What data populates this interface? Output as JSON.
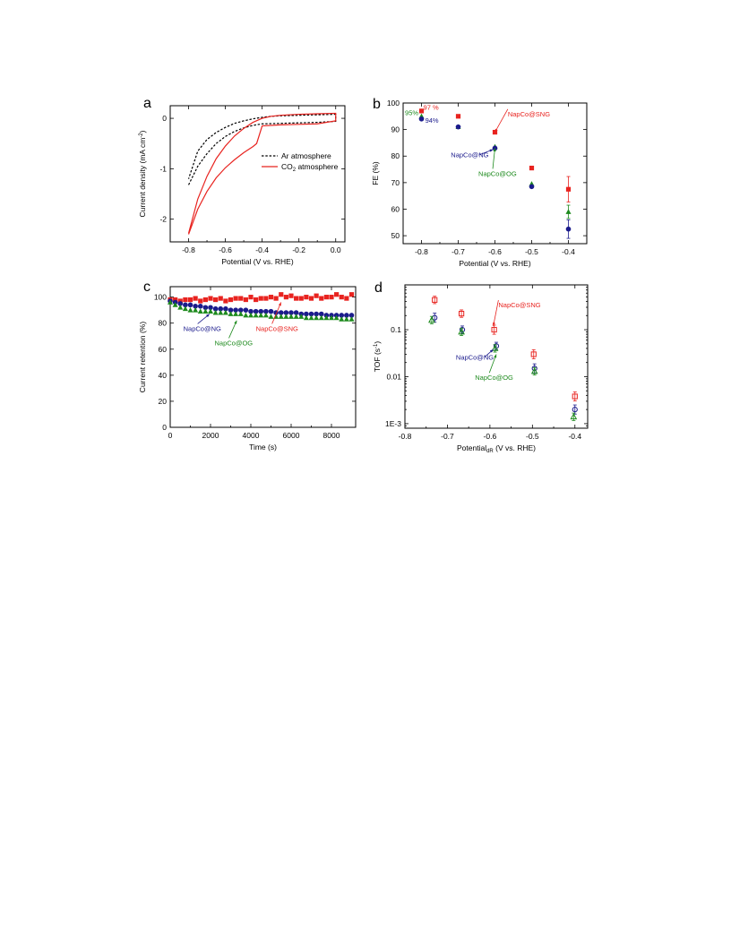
{
  "colors": {
    "red": "#e8231f",
    "green": "#1d8a1d",
    "navy": "#1b1b8c",
    "black": "#000000"
  },
  "chart_data": [
    {
      "panel": "a",
      "type": "line",
      "xlabel": "Potential (V vs. RHE)",
      "ylabel": "Current density (mA cm",
      "ylabel_sup": "-2",
      "ylabel_end": ")",
      "xlim": [
        -0.9,
        0.05
      ],
      "ylim": [
        -2.45,
        0.25
      ],
      "xticks": [
        -0.8,
        -0.6,
        -0.4,
        -0.2,
        0.0
      ],
      "xtick_labels": [
        "-0.8",
        "-0.6",
        "-0.4",
        "-0.2",
        "0.0"
      ],
      "yticks": [
        0,
        -1,
        -2
      ],
      "ytick_labels": [
        "0",
        "-1",
        "-2"
      ],
      "legend": {
        "placement": "right-middle",
        "entries": [
          {
            "label": "Ar atmosphere",
            "style": "dashed",
            "color": "#000000"
          },
          {
            "label": "CO",
            "sub": "2",
            "rest": " atmosphere",
            "style": "solid",
            "color": "#e8231f"
          }
        ]
      },
      "series": [
        {
          "name": "Ar atmosphere",
          "color": "#000000",
          "style": "dashed",
          "loops": [
            {
              "x": [
                -0.8,
                -0.75,
                -0.7,
                -0.65,
                -0.6,
                -0.55,
                -0.5,
                -0.45,
                -0.4,
                -0.3,
                -0.2,
                -0.1,
                0.0,
                0.0,
                -0.1,
                -0.2,
                -0.3,
                -0.35,
                -0.4,
                -0.45,
                -0.5,
                -0.55,
                -0.6,
                -0.65,
                -0.7,
                -0.75,
                -0.8
              ],
              "y": [
                -1.32,
                -0.95,
                -0.7,
                -0.5,
                -0.36,
                -0.26,
                -0.19,
                -0.14,
                -0.11,
                -0.1,
                -0.09,
                -0.08,
                -0.06,
                0.08,
                0.07,
                0.06,
                0.05,
                0.04,
                0.02,
                -0.01,
                -0.05,
                -0.1,
                -0.18,
                -0.28,
                -0.42,
                -0.65,
                -1.2
              ]
            }
          ]
        },
        {
          "name": "CO2 atmosphere",
          "color": "#e8231f",
          "style": "solid",
          "loops": [
            {
              "x": [
                -0.8,
                -0.75,
                -0.7,
                -0.65,
                -0.6,
                -0.55,
                -0.5,
                -0.45,
                -0.43,
                -0.4,
                -0.3,
                -0.2,
                -0.1,
                0.0,
                0.0,
                -0.1,
                -0.2,
                -0.3,
                -0.35,
                -0.4,
                -0.45,
                -0.5,
                -0.55,
                -0.6,
                -0.65,
                -0.7,
                -0.75,
                -0.8
              ],
              "y": [
                -2.3,
                -1.8,
                -1.45,
                -1.18,
                -0.98,
                -0.82,
                -0.68,
                -0.56,
                -0.5,
                -0.15,
                -0.13,
                -0.12,
                -0.11,
                -0.05,
                0.1,
                0.09,
                0.08,
                0.06,
                0.04,
                0.0,
                -0.08,
                -0.2,
                -0.35,
                -0.55,
                -0.8,
                -1.15,
                -1.6,
                -2.28
              ]
            }
          ]
        }
      ]
    },
    {
      "panel": "b",
      "type": "scatter",
      "xlabel": "Potential (V vs. RHE)",
      "ylabel": "FE (%)",
      "xlim": [
        -0.85,
        -0.35
      ],
      "ylim": [
        47,
        100
      ],
      "xticks": [
        -0.8,
        -0.7,
        -0.6,
        -0.5,
        -0.4
      ],
      "xtick_labels": [
        "-0.8",
        "-0.7",
        "-0.6",
        "-0.5",
        "-0.4"
      ],
      "yticks": [
        50,
        60,
        70,
        80,
        90,
        100
      ],
      "ytick_labels": [
        "50",
        "60",
        "70",
        "80",
        "90",
        "100"
      ],
      "series": [
        {
          "name": "NapCo@SNG",
          "color": "#e8231f",
          "marker": "square",
          "x": [
            -0.8,
            -0.7,
            -0.6,
            -0.5,
            -0.4
          ],
          "y": [
            97,
            95,
            89,
            75.5,
            67.5
          ],
          "err": [
            0.6,
            0.6,
            0.6,
            0.8,
            4.8
          ]
        },
        {
          "name": "NapCo@OG",
          "color": "#1d8a1d",
          "marker": "triangle",
          "x": [
            -0.8,
            -0.7,
            -0.6,
            -0.5,
            -0.4
          ],
          "y": [
            95,
            91,
            83.5,
            69.5,
            59
          ],
          "err": [
            0.6,
            0.6,
            0.6,
            1.0,
            2.5
          ]
        },
        {
          "name": "NapCo@NG",
          "color": "#1b1b8c",
          "marker": "circle",
          "x": [
            -0.8,
            -0.7,
            -0.6,
            -0.5,
            -0.4
          ],
          "y": [
            94,
            91,
            83,
            68.5,
            52.5
          ],
          "err": [
            0.6,
            0.6,
            0.6,
            1.0,
            3.5
          ]
        }
      ],
      "annotations": [
        {
          "text": "97 %",
          "color": "#e8231f",
          "x": -0.795,
          "y": 97.4
        },
        {
          "text": "95%",
          "color": "#1d8a1d",
          "x": -0.845,
          "y": 95.5
        },
        {
          "text": "94%",
          "color": "#1b1b8c",
          "x": -0.79,
          "y": 92.5
        },
        {
          "text": "NapCo@SNG",
          "color": "#e8231f",
          "x": -0.565,
          "y": 95,
          "arrow_to": [
            -0.6,
            89
          ]
        },
        {
          "text": "NapCo@NG",
          "color": "#1b1b8c",
          "x": -0.72,
          "y": 79.5,
          "arrow_to": [
            -0.605,
            82.5
          ]
        },
        {
          "text": "NapCo@OG",
          "color": "#1d8a1d",
          "x": -0.645,
          "y": 72.5,
          "arrow_to": [
            -0.6,
            83
          ]
        }
      ]
    },
    {
      "panel": "c",
      "type": "scatter",
      "xlabel": "Time (s)",
      "ylabel": "Current retention (%)",
      "xlim": [
        0,
        9200
      ],
      "ylim": [
        0,
        108
      ],
      "xticks": [
        0,
        2000,
        4000,
        6000,
        8000
      ],
      "xtick_labels": [
        "0",
        "2000",
        "4000",
        "6000",
        "8000"
      ],
      "yticks": [
        0,
        20,
        40,
        60,
        80,
        100
      ],
      "ytick_labels": [
        "0",
        "20",
        "40",
        "60",
        "80",
        "100"
      ],
      "series": [
        {
          "name": "NapCo@SNG",
          "color": "#e8231f",
          "marker": "square",
          "x_step": 250,
          "y": [
            98,
            98,
            97,
            98,
            98,
            99,
            97,
            98,
            99,
            98,
            99,
            97,
            98,
            99,
            99,
            98,
            100,
            98,
            99,
            99,
            100,
            99,
            102,
            100,
            101,
            99,
            99,
            100,
            99,
            101,
            99,
            100,
            100,
            102,
            100,
            99,
            102
          ]
        },
        {
          "name": "NapCo@NG",
          "color": "#1b1b8c",
          "marker": "circle",
          "x_step": 250,
          "y": [
            97,
            96,
            95,
            94,
            94,
            93,
            93,
            92,
            92,
            91,
            91,
            91,
            90,
            90,
            90,
            90,
            89,
            89,
            89,
            89,
            89,
            88,
            88,
            88,
            88,
            88,
            87,
            87,
            87,
            87,
            87,
            86,
            86,
            86,
            86,
            86,
            86
          ]
        },
        {
          "name": "NapCo@OG",
          "color": "#1d8a1d",
          "marker": "triangle",
          "x_step": 250,
          "y": [
            96,
            94,
            92,
            91,
            90,
            90,
            89,
            89,
            89,
            88,
            88,
            88,
            87,
            87,
            87,
            86,
            86,
            86,
            86,
            86,
            85,
            85,
            85,
            85,
            85,
            85,
            85,
            84,
            84,
            84,
            84,
            84,
            84,
            84,
            83,
            83,
            83
          ]
        }
      ],
      "annotations": [
        {
          "text": "NapCo@NG",
          "color": "#1b1b8c",
          "x": 650,
          "y": 74,
          "arrow_to": [
            1950,
            87
          ]
        },
        {
          "text": "NapCo@OG",
          "color": "#1d8a1d",
          "x": 2200,
          "y": 63,
          "arrow_to": [
            3300,
            82
          ]
        },
        {
          "text": "NapCo@SNG",
          "color": "#e8231f",
          "x": 4250,
          "y": 74,
          "arrow_to": [
            5500,
            96
          ]
        }
      ]
    },
    {
      "panel": "d",
      "type": "scatter",
      "xlabel": "Potential",
      "xlabel_sub": "dR",
      "xlabel_end": " (V vs. RHE)",
      "ylabel": "TOF (s",
      "ylabel_sup": "-1",
      "ylabel_end": ")",
      "y_scale": "log",
      "xlim": [
        -0.8,
        -0.37
      ],
      "ylim": [
        0.0008,
        0.9
      ],
      "xticks": [
        -0.8,
        -0.7,
        -0.6,
        -0.5,
        -0.4
      ],
      "xtick_labels": [
        "-0.8",
        "-0.7",
        "-0.6",
        "-0.5",
        "-0.4"
      ],
      "yticks": [
        0.001,
        0.01,
        0.1
      ],
      "ytick_labels": [
        "1E-3",
        "0.01",
        "0.1"
      ],
      "series": [
        {
          "name": "NapCo@SNG",
          "color": "#e8231f",
          "marker": "square-open",
          "x": [
            -0.73,
            -0.667,
            -0.59,
            -0.497,
            -0.4
          ],
          "y": [
            0.43,
            0.22,
            0.1,
            0.03,
            0.0038
          ],
          "errf": [
            1.2,
            1.2,
            1.25,
            1.25,
            1.25
          ]
        },
        {
          "name": "NapCo@NG",
          "color": "#1b1b8c",
          "marker": "circle-open",
          "x": [
            -0.73,
            -0.665,
            -0.585,
            -0.495,
            -0.4
          ],
          "y": [
            0.18,
            0.1,
            0.045,
            0.015,
            0.002
          ],
          "errf": [
            1.25,
            1.2,
            1.2,
            1.25,
            1.25
          ]
        },
        {
          "name": "NapCo@OG",
          "color": "#1d8a1d",
          "marker": "triangle-open",
          "x": [
            -0.737,
            -0.667,
            -0.588,
            -0.495,
            -0.403
          ],
          "y": [
            0.16,
            0.09,
            0.04,
            0.013,
            0.0014
          ],
          "errf": [
            1.2,
            1.2,
            1.2,
            1.2,
            1.2
          ]
        }
      ],
      "annotations": [
        {
          "text": "NapCo@SNG",
          "color": "#e8231f",
          "x": -0.58,
          "y": 0.3,
          "arrow_to": [
            -0.592,
            0.12
          ]
        },
        {
          "text": "NapCo@NG",
          "color": "#1b1b8c",
          "x": -0.68,
          "y": 0.023,
          "arrow_to": [
            -0.592,
            0.038
          ]
        },
        {
          "text": "NapCo@OG",
          "color": "#1d8a1d",
          "x": -0.635,
          "y": 0.0085,
          "arrow_to": [
            -0.585,
            0.03
          ]
        }
      ]
    }
  ]
}
